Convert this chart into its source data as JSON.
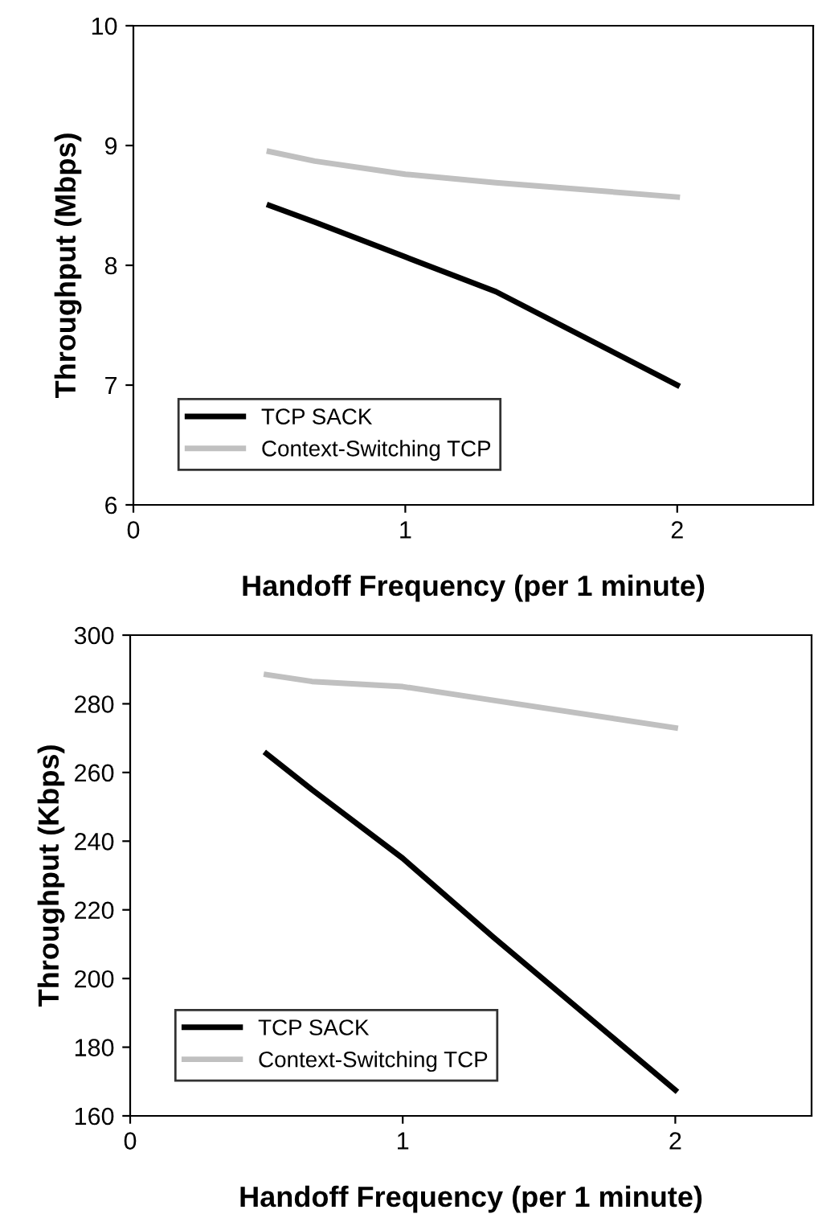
{
  "chart_data": [
    {
      "type": "line",
      "xlabel": "Handoff Frequency (per 1 minute)",
      "ylabel": "Throughput (Mbps)",
      "x": [
        0.5,
        0.667,
        1,
        1.333,
        2
      ],
      "xlim": [
        0,
        2.5
      ],
      "xticks": [
        0,
        1,
        2
      ],
      "ylim": [
        6,
        10
      ],
      "yticks": [
        6,
        7,
        8,
        9,
        10
      ],
      "grid": false,
      "legend": "bottom left",
      "marker": "none",
      "line_style": "solid",
      "series": [
        {
          "name": "TCP SACK",
          "color": "#000000",
          "values": [
            8.5,
            8.36,
            8.07,
            7.78,
            7.0
          ]
        },
        {
          "name": "Context-Switching TCP",
          "color": "#c0c0c0",
          "values": [
            8.95,
            8.87,
            8.76,
            8.69,
            8.57
          ]
        }
      ]
    },
    {
      "type": "line",
      "xlabel": "Handoff Frequency (per 1 minute)",
      "ylabel": "Throughput (Kbps)",
      "x": [
        0.5,
        0.667,
        1,
        1.333,
        2
      ],
      "xlim": [
        0,
        2.5
      ],
      "xticks": [
        0,
        1,
        2
      ],
      "ylim": [
        160,
        300
      ],
      "yticks": [
        160,
        180,
        200,
        220,
        240,
        260,
        280,
        300
      ],
      "grid": false,
      "legend": "bottom left",
      "marker": "none",
      "line_style": "solid",
      "series": [
        {
          "name": "TCP SACK",
          "color": "#000000",
          "values": [
            265.5,
            255,
            235,
            212,
            167.5
          ]
        },
        {
          "name": "Context-Switching TCP",
          "color": "#c0c0c0",
          "values": [
            288.5,
            286.5,
            285,
            281,
            273
          ]
        }
      ]
    }
  ]
}
